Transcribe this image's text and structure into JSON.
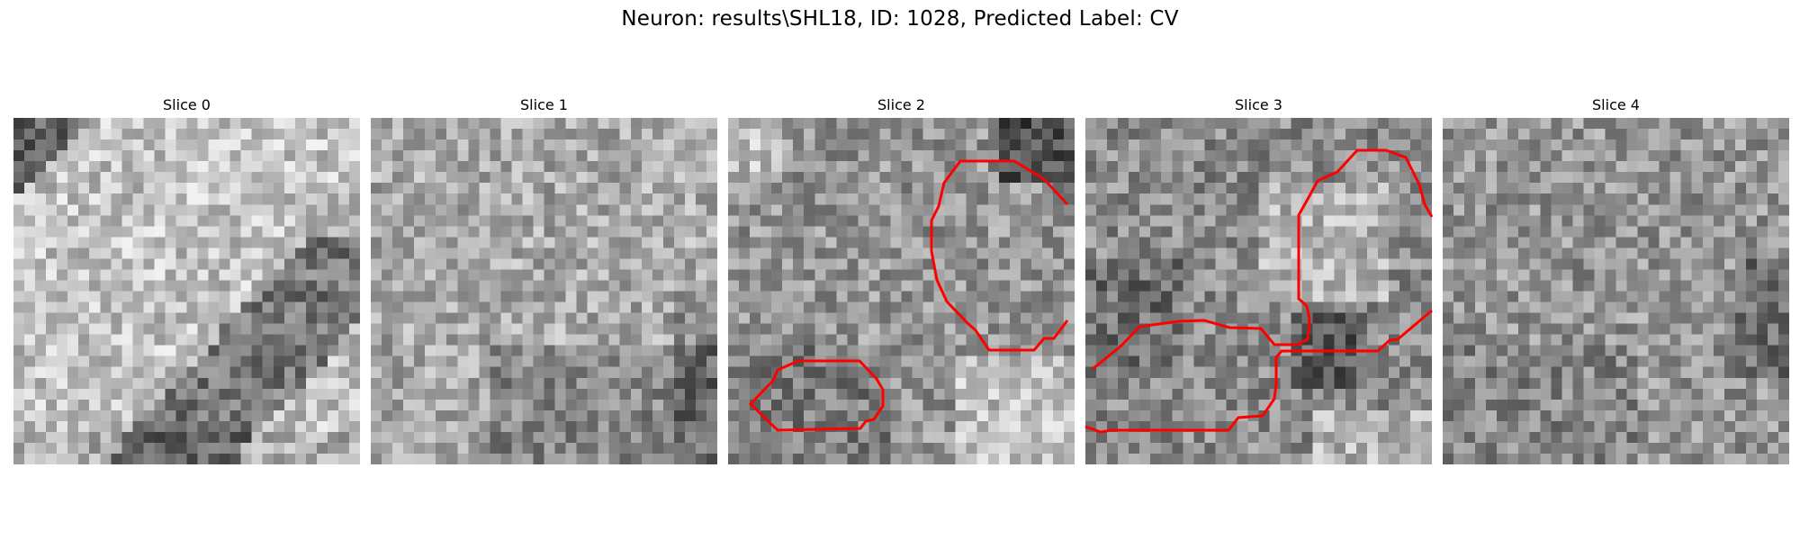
{
  "figure": {
    "title": "Neuron: results\\SHL18, ID: 1028, Predicted Label: CV"
  },
  "panels": [
    {
      "title": "Slice 0",
      "contours": 0
    },
    {
      "title": "Slice 1",
      "contours": 0
    },
    {
      "title": "Slice 2",
      "contours": 2
    },
    {
      "title": "Slice 3",
      "contours": 2
    },
    {
      "title": "Slice 4",
      "contours": 0
    }
  ],
  "colors": {
    "contour": "#ff0000",
    "background": "#ffffff",
    "colormap": "gray"
  }
}
